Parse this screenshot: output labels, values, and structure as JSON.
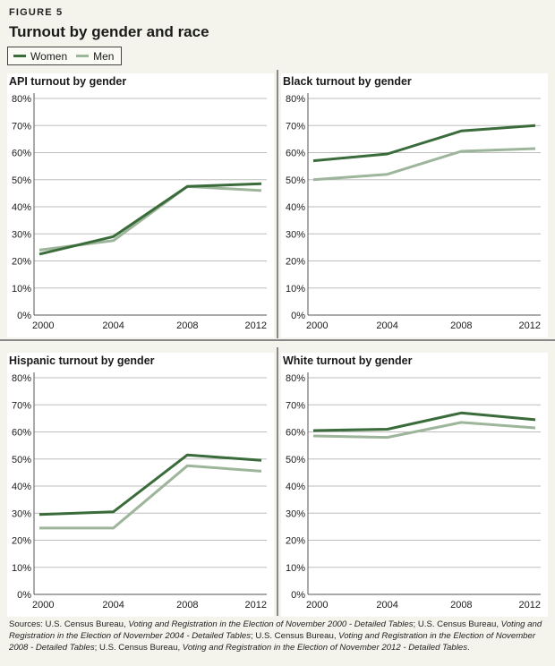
{
  "figure_label": "FIGURE 5",
  "figure_title": "Turnout by gender and race",
  "legend": {
    "women_label": "Women",
    "men_label": "Men"
  },
  "colors": {
    "women": "#3a6b3a",
    "men": "#9db59a",
    "grid": "#bdbdbd",
    "axis": "#555555",
    "background": "#f4f4ec"
  },
  "chart_data": [
    {
      "type": "line",
      "title": "API turnout by gender",
      "x": [
        "2000",
        "2004",
        "2008",
        "2012"
      ],
      "ylim": [
        0,
        80
      ],
      "yticks": [
        "0%",
        "10%",
        "20%",
        "30%",
        "40%",
        "50%",
        "60%",
        "70%",
        "80%"
      ],
      "series": [
        {
          "name": "Women",
          "values": [
            22.5,
            29,
            47.5,
            48.5
          ]
        },
        {
          "name": "Men",
          "values": [
            24,
            27.5,
            47.5,
            46
          ]
        }
      ]
    },
    {
      "type": "line",
      "title": "Black turnout by gender",
      "x": [
        "2000",
        "2004",
        "2008",
        "2012"
      ],
      "ylim": [
        0,
        80
      ],
      "yticks": [
        "0%",
        "10%",
        "20%",
        "30%",
        "40%",
        "50%",
        "60%",
        "70%",
        "80%"
      ],
      "series": [
        {
          "name": "Women",
          "values": [
            57,
            59.5,
            68,
            70
          ]
        },
        {
          "name": "Men",
          "values": [
            50,
            52,
            60.5,
            61.5
          ]
        }
      ]
    },
    {
      "type": "line",
      "title": "Hispanic turnout by gender",
      "x": [
        "2000",
        "2004",
        "2008",
        "2012"
      ],
      "ylim": [
        0,
        80
      ],
      "yticks": [
        "0%",
        "10%",
        "20%",
        "30%",
        "40%",
        "50%",
        "60%",
        "70%",
        "80%"
      ],
      "series": [
        {
          "name": "Women",
          "values": [
            29.5,
            30.5,
            51.5,
            49.5
          ]
        },
        {
          "name": "Men",
          "values": [
            24.5,
            24.5,
            47.5,
            45.5
          ]
        }
      ]
    },
    {
      "type": "line",
      "title": "White turnout by gender",
      "x": [
        "2000",
        "2004",
        "2008",
        "2012"
      ],
      "ylim": [
        0,
        80
      ],
      "yticks": [
        "0%",
        "10%",
        "20%",
        "30%",
        "40%",
        "50%",
        "60%",
        "70%",
        "80%"
      ],
      "series": [
        {
          "name": "Women",
          "values": [
            60.5,
            61,
            67,
            64.5
          ]
        },
        {
          "name": "Men",
          "values": [
            58.5,
            58,
            63.5,
            61.5
          ]
        }
      ]
    }
  ],
  "sources": {
    "prefix": "Sources: U.S. Census Bureau, ",
    "t1": "Voting and Registration in the Election of November 2000 - Detailed Tables",
    "sep1": "; U.S. Census Bureau, ",
    "t2": "Voting and Registration in the Election of November 2004 - Detailed Tables",
    "sep2": "; U.S. Census Bureau, ",
    "t3": "Voting and Registration in the Election of November 2008 - Detailed Tables",
    "sep3": "; U.S. Census Bureau, ",
    "t4": "Voting and Registration in the Election of November 2012 - Detailed Tables",
    "suffix": "."
  }
}
